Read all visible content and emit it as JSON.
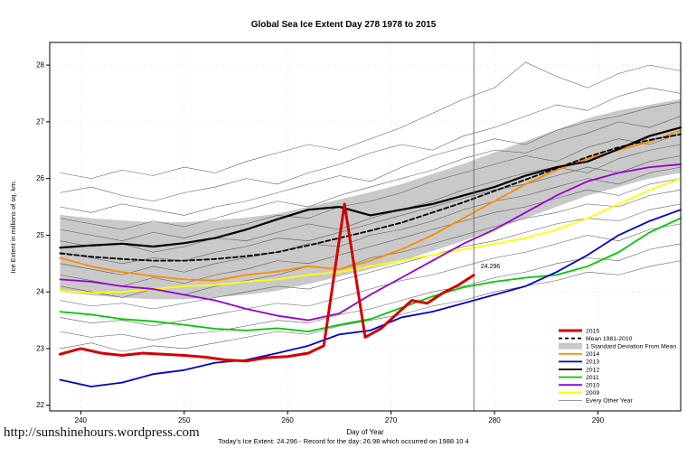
{
  "page": {
    "title": "Global Sea Ice Extent Day 278 1978 to 2015"
  },
  "footer": {
    "caption": "Today's Ice Extent: 24.296  - Record for the day: 26.98 which occurred on 1988 10 4",
    "website": "http://sunshinehours.wordpress.com"
  },
  "chart_data": {
    "type": "line",
    "title": "Global Sea Ice Extent Day 278 1978 to 2015",
    "xlabel": "Day of Year",
    "ylabel": "Ice Extent in millions of sq. km.",
    "xlim": [
      237,
      298
    ],
    "ylim": [
      21.9,
      28.4
    ],
    "xticks": [
      240,
      250,
      260,
      270,
      280,
      290
    ],
    "yticks": [
      22,
      23,
      24,
      25,
      26,
      27,
      28
    ],
    "grid": true,
    "vline_x": 278,
    "annotation": {
      "text": "24.296",
      "x": 278.4,
      "y": 24.42,
      "color": "#cc0000"
    },
    "x": [
      238,
      241,
      244,
      247,
      250,
      253,
      256,
      259,
      262,
      265,
      268,
      271,
      274,
      277,
      280,
      283,
      286,
      289,
      292,
      295,
      298
    ],
    "band": {
      "label": "1 Standard Deviation From Mean",
      "color": "#c9c9c9",
      "upper": [
        25.36,
        25.3,
        25.26,
        25.23,
        25.23,
        25.26,
        25.31,
        25.38,
        25.5,
        25.63,
        25.76,
        25.9,
        26.08,
        26.26,
        26.46,
        26.66,
        26.86,
        27.06,
        27.2,
        27.3,
        27.4
      ],
      "lower": [
        24.0,
        23.94,
        23.9,
        23.87,
        23.87,
        23.9,
        23.95,
        24.02,
        24.14,
        24.27,
        24.4,
        24.54,
        24.72,
        24.9,
        25.1,
        25.3,
        25.5,
        25.7,
        25.85,
        26.0,
        26.1
      ]
    },
    "series": [
      {
        "label": "2009",
        "color": "#ffff00",
        "width": 1.8,
        "values": [
          24.02,
          23.98,
          24.0,
          24.05,
          24.1,
          24.12,
          24.18,
          24.22,
          24.3,
          24.35,
          24.45,
          24.55,
          24.65,
          24.75,
          24.85,
          24.95,
          25.1,
          25.3,
          25.55,
          25.8,
          26.0
        ]
      },
      {
        "label": "2011",
        "color": "#00c800",
        "width": 1.8,
        "values": [
          23.65,
          23.6,
          23.52,
          23.48,
          23.42,
          23.35,
          23.32,
          23.36,
          23.3,
          23.42,
          23.52,
          23.72,
          23.92,
          24.08,
          24.18,
          24.25,
          24.3,
          24.45,
          24.7,
          25.05,
          25.3
        ]
      },
      {
        "label": "2010",
        "color": "#9400d3",
        "width": 1.8,
        "values": [
          24.22,
          24.18,
          24.1,
          24.05,
          23.95,
          23.85,
          23.7,
          23.58,
          23.5,
          23.62,
          23.95,
          24.25,
          24.55,
          24.85,
          25.1,
          25.4,
          25.7,
          25.95,
          26.1,
          26.2,
          26.25
        ]
      },
      {
        "label": "2013",
        "color": "#0000d0",
        "width": 1.8,
        "values": [
          22.45,
          22.33,
          22.4,
          22.55,
          22.62,
          22.75,
          22.8,
          22.92,
          23.05,
          23.25,
          23.32,
          23.55,
          23.65,
          23.8,
          23.95,
          24.1,
          24.35,
          24.65,
          25.0,
          25.25,
          25.45
        ]
      },
      {
        "label": "2014",
        "color": "#ff8c00",
        "width": 1.8,
        "values": [
          24.6,
          24.45,
          24.35,
          24.28,
          24.22,
          24.2,
          24.3,
          24.36,
          24.45,
          24.4,
          24.55,
          24.75,
          25.0,
          25.3,
          25.6,
          25.9,
          26.15,
          26.35,
          26.5,
          26.65,
          26.85
        ]
      },
      {
        "label": "Mean 1981-2010",
        "color": "#000000",
        "width": 1.8,
        "dash": "5,3",
        "values": [
          24.68,
          24.62,
          24.58,
          24.55,
          24.55,
          24.58,
          24.63,
          24.7,
          24.82,
          24.95,
          25.08,
          25.22,
          25.4,
          25.58,
          25.78,
          25.98,
          26.18,
          26.38,
          26.55,
          26.68,
          26.78
        ]
      },
      {
        "label": "2012",
        "color": "#000000",
        "width": 2.2,
        "values": [
          24.78,
          24.82,
          24.85,
          24.8,
          24.86,
          24.95,
          25.1,
          25.28,
          25.45,
          25.5,
          25.35,
          25.45,
          25.55,
          25.7,
          25.85,
          26.05,
          26.2,
          26.3,
          26.52,
          26.75,
          26.9
        ]
      },
      {
        "label": "2015",
        "color": "#d40000",
        "width": 3,
        "x": [
          238,
          240,
          242,
          244,
          246,
          248,
          250,
          252,
          254,
          256,
          258,
          260,
          262,
          263.5,
          265.5,
          267.5,
          269,
          270.5,
          272,
          273.5,
          275,
          276.5,
          278
        ],
        "values": [
          22.9,
          23.0,
          22.92,
          22.88,
          22.92,
          22.9,
          22.88,
          22.85,
          22.8,
          22.78,
          22.84,
          22.86,
          22.92,
          23.05,
          25.55,
          23.2,
          23.35,
          23.6,
          23.85,
          23.8,
          23.98,
          24.12,
          24.296
        ]
      }
    ],
    "other_years": {
      "label": "Every Other Year",
      "color": "#5a5a5a",
      "width": 0.55,
      "lines": [
        [
          26.1,
          26.0,
          26.15,
          26.05,
          26.2,
          26.1,
          26.3,
          26.45,
          26.6,
          26.5,
          26.7,
          26.9,
          27.15,
          27.4,
          27.6,
          28.05,
          27.8,
          27.6,
          27.85,
          28.0,
          27.9
        ],
        [
          25.75,
          25.85,
          25.7,
          25.6,
          25.75,
          25.85,
          26.0,
          25.9,
          26.1,
          26.25,
          26.45,
          26.6,
          26.5,
          26.75,
          26.9,
          27.1,
          27.3,
          27.2,
          27.45,
          27.6,
          27.5
        ],
        [
          25.5,
          25.4,
          25.55,
          25.45,
          25.35,
          25.5,
          25.6,
          25.75,
          25.9,
          26.05,
          25.95,
          26.2,
          26.4,
          26.55,
          26.7,
          26.6,
          26.85,
          27.0,
          27.1,
          27.25,
          27.35
        ],
        [
          25.3,
          25.2,
          25.1,
          25.25,
          25.15,
          25.3,
          25.45,
          25.6,
          25.5,
          25.7,
          25.85,
          26.0,
          26.15,
          26.35,
          26.5,
          26.45,
          26.65,
          26.8,
          27.0,
          26.9,
          27.1
        ],
        [
          25.1,
          25.0,
          24.9,
          25.05,
          24.95,
          25.1,
          25.2,
          25.35,
          25.3,
          25.5,
          25.6,
          25.75,
          25.95,
          26.1,
          26.25,
          26.4,
          26.3,
          26.55,
          26.7,
          26.6,
          26.8
        ],
        [
          24.9,
          24.8,
          24.85,
          24.7,
          24.8,
          24.95,
          24.9,
          25.05,
          25.2,
          25.1,
          25.3,
          25.45,
          25.6,
          25.8,
          25.95,
          26.1,
          26.2,
          26.1,
          26.35,
          26.5,
          26.6
        ],
        [
          24.7,
          24.6,
          24.5,
          24.6,
          24.55,
          24.7,
          24.8,
          24.95,
          24.9,
          25.05,
          25.2,
          25.35,
          25.5,
          25.65,
          25.8,
          25.9,
          26.05,
          26.2,
          26.1,
          26.3,
          26.4
        ],
        [
          24.5,
          24.4,
          24.3,
          24.45,
          24.35,
          24.5,
          24.6,
          24.7,
          24.85,
          24.8,
          25.0,
          25.1,
          25.25,
          25.45,
          25.6,
          25.7,
          25.85,
          26.0,
          25.9,
          26.1,
          26.2
        ],
        [
          24.3,
          24.2,
          24.1,
          24.25,
          24.15,
          24.3,
          24.4,
          24.55,
          24.5,
          24.65,
          24.8,
          24.95,
          25.1,
          25.25,
          25.4,
          25.5,
          25.65,
          25.8,
          25.7,
          25.9,
          26.0
        ],
        [
          24.1,
          24.0,
          23.9,
          24.05,
          23.95,
          24.1,
          24.2,
          24.3,
          24.45,
          24.4,
          24.6,
          24.7,
          24.85,
          25.0,
          25.15,
          25.3,
          25.4,
          25.55,
          25.5,
          25.7,
          25.8
        ],
        [
          23.85,
          23.75,
          23.8,
          23.7,
          23.8,
          23.9,
          24.0,
          24.1,
          24.05,
          24.2,
          24.35,
          24.5,
          24.65,
          24.8,
          24.9,
          25.05,
          25.2,
          25.3,
          25.25,
          25.45,
          25.55
        ],
        [
          23.55,
          23.45,
          23.5,
          23.4,
          23.5,
          23.6,
          23.7,
          23.8,
          23.75,
          23.9,
          24.05,
          24.2,
          24.3,
          24.45,
          24.6,
          24.7,
          24.85,
          25.0,
          24.9,
          25.1,
          25.2
        ],
        [
          23.3,
          23.2,
          23.25,
          23.15,
          23.25,
          23.3,
          23.4,
          23.5,
          23.45,
          23.6,
          23.7,
          23.85,
          24.0,
          24.1,
          24.25,
          24.35,
          24.5,
          24.6,
          24.55,
          24.75,
          24.85
        ],
        [
          23.0,
          23.1,
          22.95,
          23.05,
          23.0,
          23.1,
          23.2,
          23.3,
          23.25,
          23.4,
          23.5,
          23.6,
          23.75,
          23.85,
          24.0,
          24.1,
          24.2,
          24.35,
          24.3,
          24.45,
          24.55
        ]
      ]
    },
    "legend": [
      {
        "label": "2015",
        "color": "#d40000",
        "style": "thick"
      },
      {
        "label": "Mean 1981-2010",
        "color": "#000000",
        "style": "dashed"
      },
      {
        "label": "1 Standard Deviation From Mean",
        "color": "#c9c9c9",
        "style": "fill"
      },
      {
        "label": "2014",
        "color": "#ff8c00",
        "style": "line"
      },
      {
        "label": "2013",
        "color": "#0000d0",
        "style": "line"
      },
      {
        "label": "2012",
        "color": "#000000",
        "style": "line"
      },
      {
        "label": "2011",
        "color": "#00c800",
        "style": "line"
      },
      {
        "label": "2010",
        "color": "#9400d3",
        "style": "line"
      },
      {
        "label": "2009",
        "color": "#ffff00",
        "style": "line"
      },
      {
        "label": "Every Other Year",
        "color": "#5a5a5a",
        "style": "thin"
      }
    ]
  }
}
